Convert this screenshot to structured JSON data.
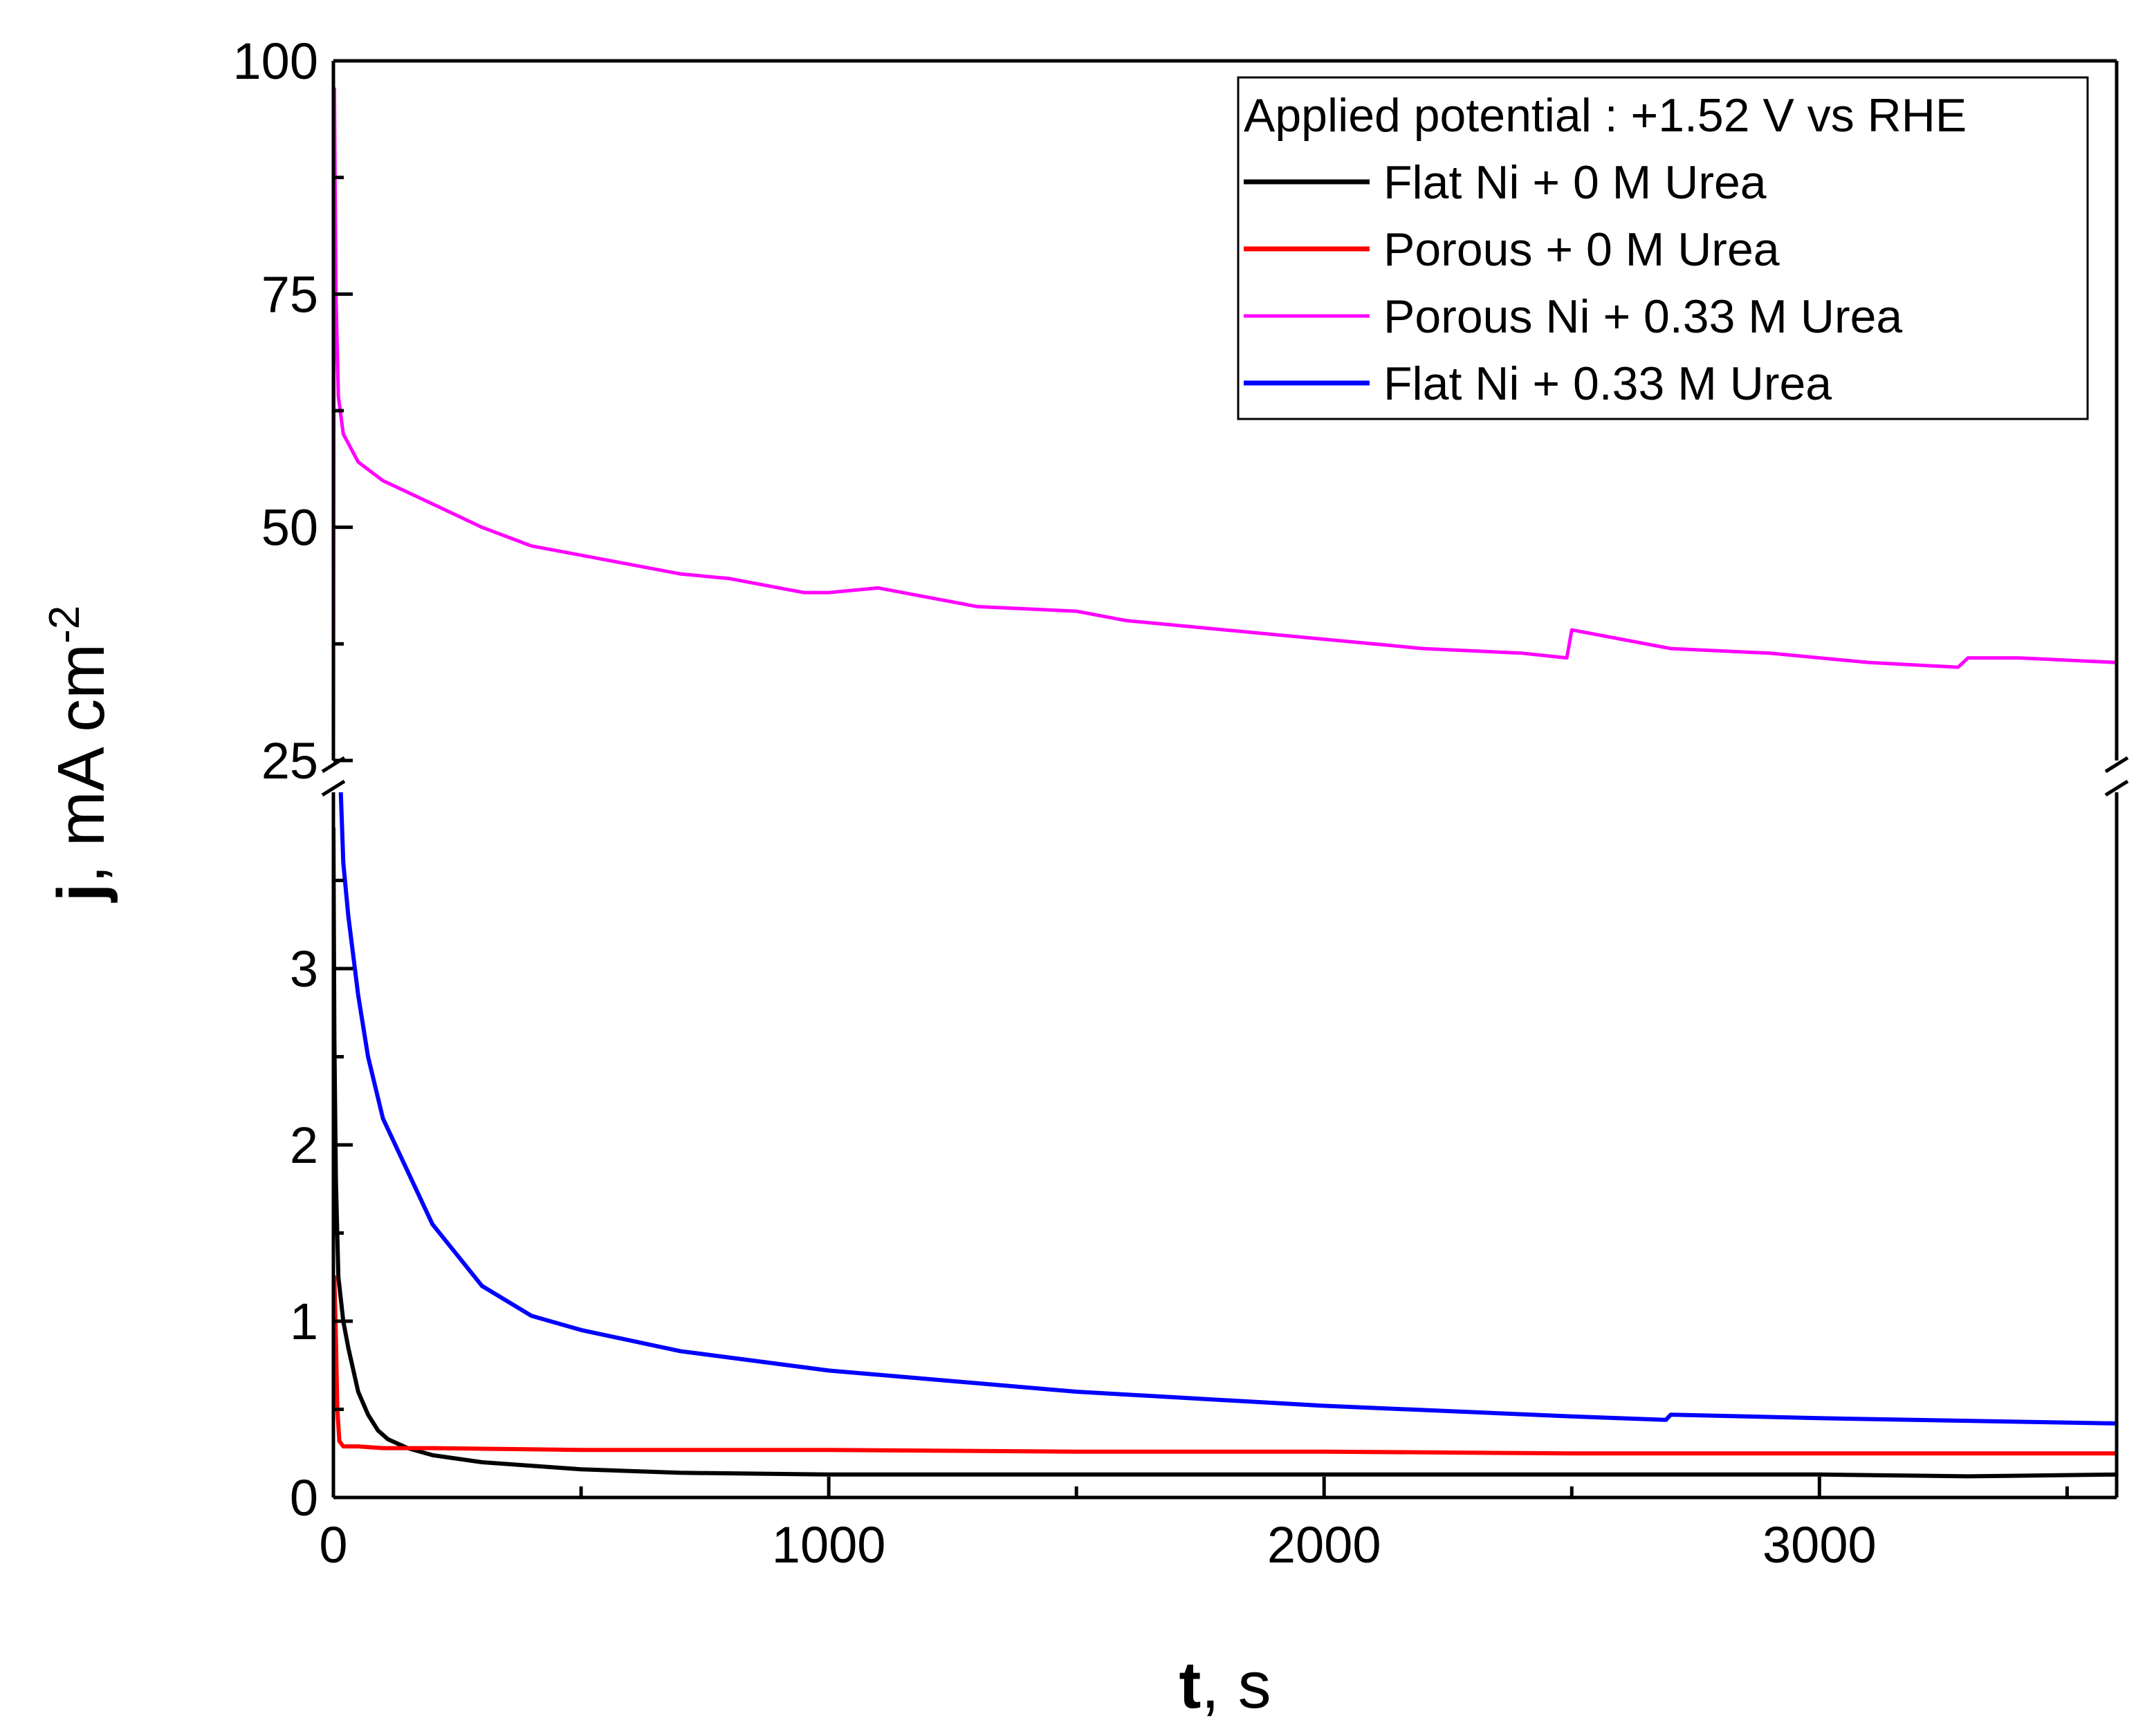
{
  "chart_data": {
    "type": "line",
    "title": "",
    "xlabel": {
      "symbol": "t",
      "unit": ", s"
    },
    "ylabel": {
      "symbol": "j",
      "unit": ", mA cm",
      "sup": "-2"
    },
    "xlim": [
      0,
      3600
    ],
    "x_ticks": [
      0,
      1000,
      2000,
      3000
    ],
    "y_axis_broken": true,
    "ylim_lower": [
      0,
      4
    ],
    "ylim_upper": [
      25,
      100
    ],
    "y_ticks_lower": [
      0,
      1,
      2,
      3
    ],
    "y_ticks_upper": [
      25,
      50,
      75,
      100
    ],
    "legend": {
      "title": "Applied potential : +1.52 V vs RHE",
      "placement": "top-right"
    },
    "series": [
      {
        "name": "Flat Ni + 0 M Urea",
        "color": "#000000",
        "x": [
          0,
          2,
          5,
          10,
          20,
          30,
          50,
          70,
          90,
          110,
          150,
          200,
          300,
          400,
          500,
          700,
          1000,
          1500,
          2000,
          2500,
          3000,
          3300,
          3600
        ],
        "y": [
          3.8,
          2.6,
          1.8,
          1.25,
          1.0,
          0.85,
          0.6,
          0.47,
          0.38,
          0.33,
          0.28,
          0.24,
          0.2,
          0.18,
          0.16,
          0.14,
          0.13,
          0.13,
          0.13,
          0.13,
          0.13,
          0.12,
          0.13
        ]
      },
      {
        "name": "Porous + 0 M Urea",
        "color": "#ff0000",
        "x": [
          0,
          2,
          5,
          8,
          12,
          20,
          50,
          100,
          200,
          500,
          1000,
          1500,
          2000,
          2500,
          3000,
          3600
        ],
        "y": [
          0.95,
          1.25,
          0.9,
          0.5,
          0.32,
          0.29,
          0.29,
          0.28,
          0.28,
          0.27,
          0.27,
          0.26,
          0.26,
          0.25,
          0.25,
          0.25
        ]
      },
      {
        "name": "Porous Ni + 0.33 M Urea",
        "color": "#ff00ff",
        "x": [
          0,
          2,
          5,
          10,
          20,
          50,
          100,
          200,
          300,
          400,
          500,
          600,
          700,
          800,
          950,
          1000,
          1100,
          1200,
          1300,
          1500,
          1600,
          1800,
          2000,
          2200,
          2400,
          2490,
          2500,
          2700,
          2900,
          3100,
          3280,
          3300,
          3400,
          3600
        ],
        "y": [
          26,
          97,
          75,
          64,
          60,
          57,
          55,
          52.5,
          50,
          48,
          47,
          46,
          45,
          44.5,
          43,
          43,
          43.5,
          42.5,
          41.5,
          41,
          40,
          39,
          38,
          37,
          36.5,
          36,
          39,
          37,
          36.5,
          35.5,
          35,
          36,
          36,
          35.5
        ]
      },
      {
        "name": "Flat Ni + 0.33 M Urea",
        "color": "#0000ff",
        "x": [
          15,
          20,
          30,
          50,
          70,
          100,
          150,
          200,
          300,
          400,
          500,
          700,
          1000,
          1500,
          2000,
          2500,
          2690,
          2700,
          3000,
          3600
        ],
        "y": [
          4.0,
          3.6,
          3.3,
          2.85,
          2.5,
          2.15,
          1.85,
          1.55,
          1.2,
          1.03,
          0.95,
          0.83,
          0.72,
          0.6,
          0.52,
          0.46,
          0.44,
          0.47,
          0.45,
          0.42
        ]
      }
    ]
  }
}
